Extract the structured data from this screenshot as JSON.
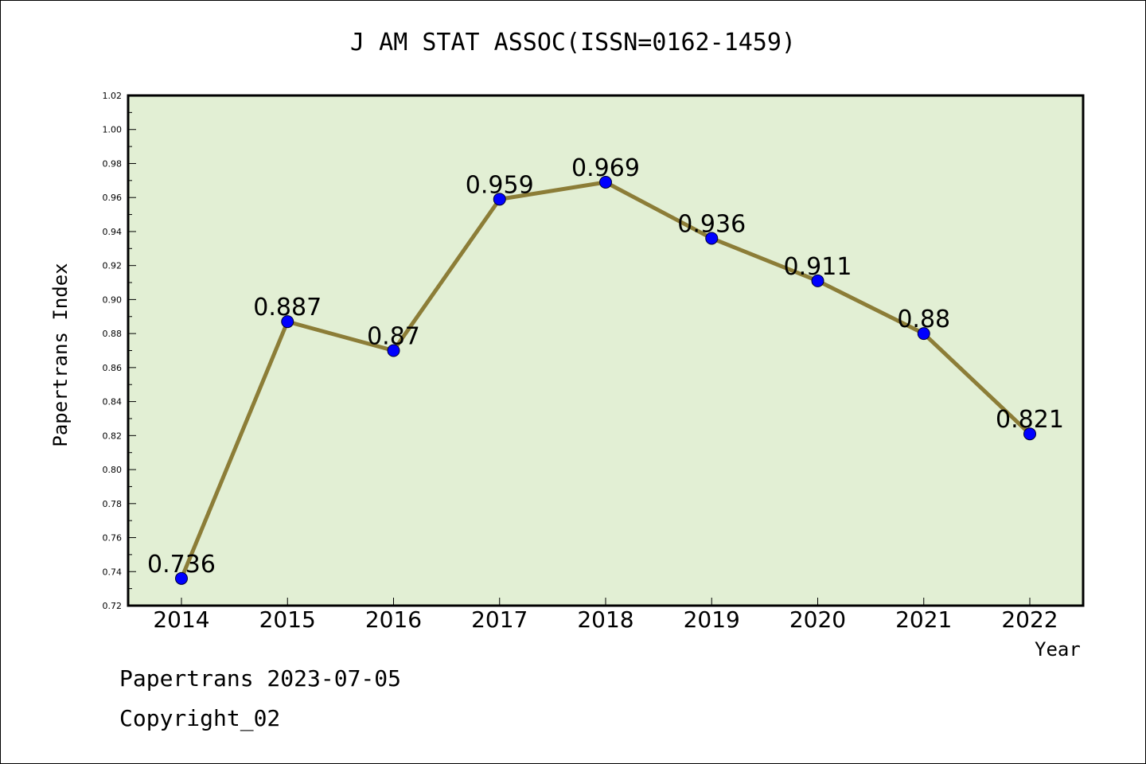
{
  "chart_data": {
    "type": "line",
    "title": "J AM STAT ASSOC(ISSN=0162-1459)",
    "xlabel": "Year",
    "ylabel": "Papertrans Index",
    "x": [
      "2014",
      "2015",
      "2016",
      "2017",
      "2018",
      "2019",
      "2020",
      "2021",
      "2022"
    ],
    "values": [
      0.736,
      0.887,
      0.87,
      0.959,
      0.969,
      0.936,
      0.911,
      0.88,
      0.821
    ],
    "data_labels": [
      "0.736",
      "0.887",
      "0.87",
      "0.959",
      "0.969",
      "0.936",
      "0.911",
      "0.88",
      "0.821"
    ],
    "ylim": [
      0.72,
      1.02
    ],
    "yticks": [
      "0.72",
      "0.74",
      "0.76",
      "0.78",
      "0.80",
      "0.82",
      "0.84",
      "0.86",
      "0.88",
      "0.90",
      "0.92",
      "0.94",
      "0.96",
      "0.98",
      "1.00",
      "1.02"
    ],
    "grid": false,
    "colors": {
      "plot_background": "#e2efd4",
      "line": "#8c7d37",
      "marker": "#0000ff"
    }
  },
  "footer": {
    "line1": "Papertrans 2023-07-05",
    "line2": "Copyright_02"
  }
}
